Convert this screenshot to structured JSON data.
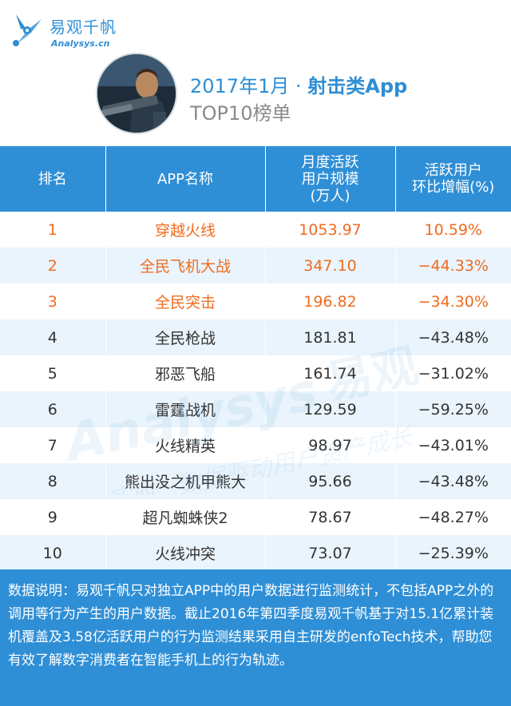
{
  "brand": {
    "name_cn": "易观千帆",
    "name_en": "Analysys.cn",
    "color": "#2f8fd6",
    "logo_icon": "analysys-logo-icon"
  },
  "title": {
    "date": "2017年1月",
    "separator": "·",
    "category": "射击类App",
    "subtitle": "TOP10榜单"
  },
  "hero_image": "shooter-game-character-avatar",
  "table": {
    "headers": [
      "排名",
      "APP名称",
      "月度活跃\n用户规模\n(万人)",
      "活跃用户\n环比增幅(%)"
    ],
    "highlight_color": "#f06b1f",
    "rows": [
      {
        "rank": "1",
        "name": "穿越火线",
        "mau": "1053.97",
        "growth": "10.59%",
        "highlight": true
      },
      {
        "rank": "2",
        "name": "全民飞机大战",
        "mau": "347.10",
        "growth": "−44.33%",
        "highlight": true
      },
      {
        "rank": "3",
        "name": "全民突击",
        "mau": "196.82",
        "growth": "−34.30%",
        "highlight": true
      },
      {
        "rank": "4",
        "name": "全民枪战",
        "mau": "181.81",
        "growth": "−43.48%",
        "highlight": false
      },
      {
        "rank": "5",
        "name": "邪恶飞船",
        "mau": "161.74",
        "growth": "−31.02%",
        "highlight": false
      },
      {
        "rank": "6",
        "name": "雷霆战机",
        "mau": "129.59",
        "growth": "−59.25%",
        "highlight": false
      },
      {
        "rank": "7",
        "name": "火线精英",
        "mau": "98.97",
        "growth": "−43.01%",
        "highlight": false
      },
      {
        "rank": "8",
        "name": "熊出没之机甲熊大",
        "mau": "95.66",
        "growth": "−43.48%",
        "highlight": false
      },
      {
        "rank": "9",
        "name": "超凡蜘蛛侠2",
        "mau": "78.67",
        "growth": "−48.27%",
        "highlight": false
      },
      {
        "rank": "10",
        "name": "火线冲突",
        "mau": "73.07",
        "growth": "−25.39%",
        "highlight": false
      }
    ]
  },
  "watermark": {
    "en": "Analysys",
    "cn_brand": "易观",
    "slogan": "实时 · 数据驱动用户资产成长"
  },
  "note": "数据说明：易观千帆只对独立APP中的用户数据进行监测统计，不包括APP之外的调用等行为产生的用户数据。截止2016年第四季度易观千帆基于对15.1亿累计装机覆盖及3.58亿活跃用户的行为监测结果采用自主研发的enfoTech技术，帮助您有效了解数字消费者在智能手机上的行为轨迹。"
}
